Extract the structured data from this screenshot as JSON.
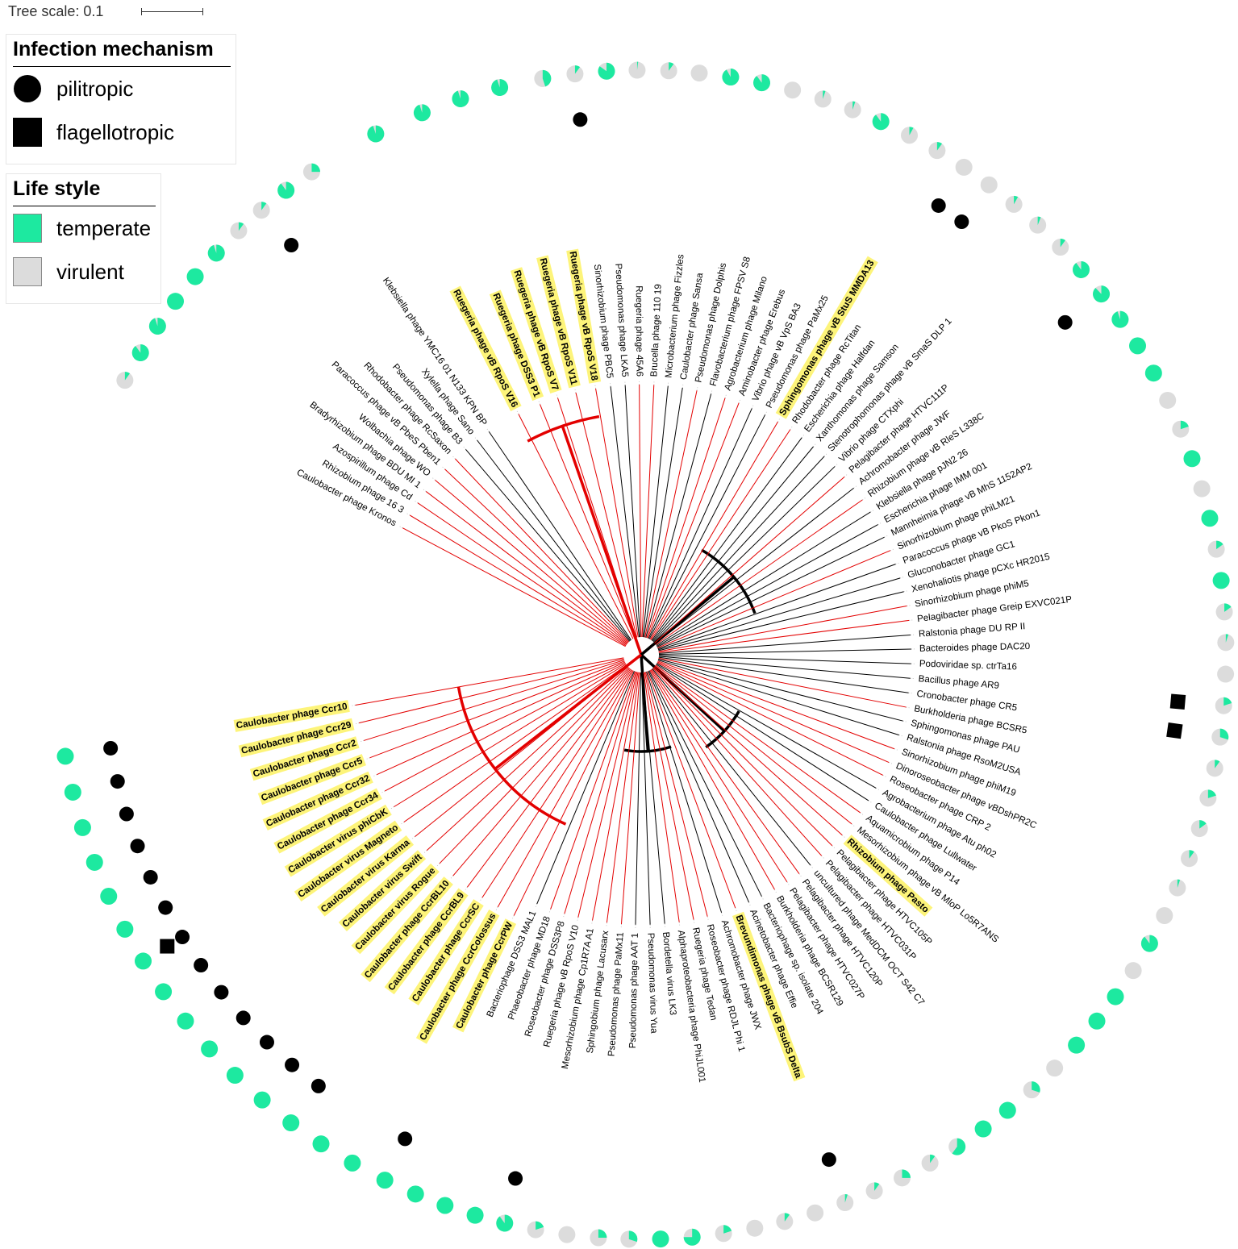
{
  "scale": {
    "label": "Tree scale: 0.1",
    "value": 0.1
  },
  "legend_infection": {
    "title": "Infection mechanism",
    "items": [
      {
        "label": "pilitropic",
        "shape": "circle",
        "color": "#000000"
      },
      {
        "label": "flagellotropic",
        "shape": "square",
        "color": "#000000"
      }
    ]
  },
  "legend_life": {
    "title": "Life style",
    "items": [
      {
        "label": "temperate",
        "color": "#1de9a0"
      },
      {
        "label": "virulent",
        "color": "#dcdcdc"
      }
    ]
  },
  "colors": {
    "temperate": "#1de9a0",
    "virulent": "#dcdcdc",
    "highlight": "#fdf47a",
    "caulo_branch": "#e30000",
    "branch": "#000000"
  },
  "tips": [
    {
      "name": "Ruegeria phage vB RpoS V18",
      "hl": true,
      "ang": -99.7,
      "t": 0.45,
      "mech": null,
      "red": true
    },
    {
      "name": "Sinorhizobium phage PBC5",
      "hl": false,
      "ang": -96.5,
      "t": 0.1,
      "mech": "pili",
      "red": false
    },
    {
      "name": "Pseudomonas phage LKA5",
      "hl": false,
      "ang": -93.4,
      "t": 0.85,
      "mech": null,
      "red": false
    },
    {
      "name": "Ruegeria phage 45A6",
      "hl": false,
      "ang": -90.4,
      "t": 0.02,
      "mech": null,
      "red": true
    },
    {
      "name": "Brucella phage 110 19",
      "hl": false,
      "ang": -87.3,
      "t": 0.1,
      "mech": null,
      "red": true
    },
    {
      "name": "Microbacterium phage Fizzles",
      "hl": false,
      "ang": -84.3,
      "t": 0.0,
      "mech": null,
      "red": false
    },
    {
      "name": "Caulobacter phage Sansa",
      "hl": false,
      "ang": -81.2,
      "t": 0.92,
      "mech": null,
      "red": false
    },
    {
      "name": "Pseudomonas phage Dolphis",
      "hl": false,
      "ang": -78.1,
      "t": 0.9,
      "mech": null,
      "red": true
    },
    {
      "name": "Flavobacterium phage FPSV S8",
      "hl": false,
      "ang": -75.0,
      "t": 0.0,
      "mech": null,
      "red": false
    },
    {
      "name": "Agrobacterium phage Milano",
      "hl": false,
      "ang": -71.9,
      "t": 0.05,
      "mech": null,
      "red": true
    },
    {
      "name": "Aminobacter phage Erebus",
      "hl": false,
      "ang": -68.8,
      "t": 0.05,
      "mech": null,
      "red": true
    },
    {
      "name": "Vibrio phage vB VpS BA3",
      "hl": false,
      "ang": -65.8,
      "t": 0.9,
      "mech": null,
      "red": false
    },
    {
      "name": "Pseudomonas phage PaMx25",
      "hl": false,
      "ang": -62.7,
      "t": 0.08,
      "mech": null,
      "red": false
    },
    {
      "name": "Sphingomonas phage vB StuS MMDA13",
      "hl": true,
      "ang": -59.6,
      "t": 0.1,
      "mech": null,
      "red": true
    },
    {
      "name": "Rhodobacter phage RcTitan",
      "hl": false,
      "ang": -56.5,
      "t": 0.0,
      "mech": "pili",
      "red": true
    },
    {
      "name": "Escherichia phage Halfdan",
      "hl": false,
      "ang": -53.5,
      "t": 0.0,
      "mech": "pili",
      "red": false
    },
    {
      "name": "Xanthomonas phage Samson",
      "hl": false,
      "ang": -50.4,
      "t": 0.08,
      "mech": null,
      "red": false
    },
    {
      "name": "Stenotrophomonas phage vB SmaS DLP 1",
      "hl": false,
      "ang": -47.3,
      "t": 0.06,
      "mech": null,
      "red": false
    },
    {
      "name": "Vibrio phage CTXphi",
      "hl": false,
      "ang": -44.2,
      "t": 0.1,
      "mech": null,
      "red": false
    },
    {
      "name": "Pelagibacter phage HTVC111P",
      "hl": false,
      "ang": -41.2,
      "t": 0.9,
      "mech": null,
      "red": true
    },
    {
      "name": "Achromobacter phage JWF",
      "hl": false,
      "ang": -38.1,
      "t": 0.88,
      "mech": "pili",
      "red": false
    },
    {
      "name": "Rhizobium phage vB RleS L338C",
      "hl": false,
      "ang": -35.0,
      "t": 0.95,
      "mech": null,
      "red": true
    },
    {
      "name": "Klebsiella phage pJN2 26",
      "hl": false,
      "ang": -31.9,
      "t": 1.0,
      "mech": null,
      "red": false
    },
    {
      "name": "Escherichia phage IMM 001",
      "hl": false,
      "ang": -28.8,
      "t": 1.0,
      "mech": null,
      "red": false
    },
    {
      "name": "Mannheimia phage vB MhS 1152AP2",
      "hl": false,
      "ang": -25.8,
      "t": 0.0,
      "mech": null,
      "red": false
    },
    {
      "name": "Sinorhizobium phage phiLM21",
      "hl": false,
      "ang": -22.7,
      "t": 0.2,
      "mech": null,
      "red": true
    },
    {
      "name": "Paracoccus phage vB PkoS Pkon1",
      "hl": false,
      "ang": -19.6,
      "t": 1.0,
      "mech": null,
      "red": false
    },
    {
      "name": "Gluconobacter phage GC1",
      "hl": false,
      "ang": -16.5,
      "t": 0.0,
      "mech": null,
      "red": false
    },
    {
      "name": "Xenohaliotis phage pCXc HR2015",
      "hl": false,
      "ang": -13.5,
      "t": 1.0,
      "mech": null,
      "red": false
    },
    {
      "name": "Sinorhizobium phage phiM5",
      "hl": false,
      "ang": -10.4,
      "t": 0.15,
      "mech": null,
      "red": true
    },
    {
      "name": "Pelagibacter phage Greip EXVC021P",
      "hl": false,
      "ang": -7.3,
      "t": 1.0,
      "mech": null,
      "red": true
    },
    {
      "name": "Ralstonia phage DU RP II",
      "hl": false,
      "ang": -4.2,
      "t": 0.15,
      "mech": null,
      "red": false
    },
    {
      "name": "Bacteroides phage DAC20",
      "hl": false,
      "ang": -1.2,
      "t": 0.05,
      "mech": null,
      "red": false
    },
    {
      "name": "Podoviridae sp. ctrTa16",
      "hl": false,
      "ang": 1.9,
      "t": 0.0,
      "mech": null,
      "red": false
    },
    {
      "name": "Bacillus phage AR9",
      "hl": false,
      "ang": 5.0,
      "t": 0.2,
      "mech": "flag",
      "red": false
    },
    {
      "name": "Cronobacter phage CR5",
      "hl": false,
      "ang": 8.1,
      "t": 0.3,
      "mech": "flag",
      "red": false
    },
    {
      "name": "Burkholderia phage BCSR5",
      "hl": false,
      "ang": 11.2,
      "t": 0.1,
      "mech": null,
      "red": true
    },
    {
      "name": "Sphingomonas phage PAU",
      "hl": false,
      "ang": 14.2,
      "t": 0.2,
      "mech": null,
      "red": false
    },
    {
      "name": "Ralstonia phage RsoM2USA",
      "hl": false,
      "ang": 17.3,
      "t": 0.15,
      "mech": null,
      "red": false
    },
    {
      "name": "Sinorhizobium phage phiM19",
      "hl": false,
      "ang": 20.4,
      "t": 0.1,
      "mech": null,
      "red": true
    },
    {
      "name": "Dinoroseobacter phage vBDshPR2C",
      "hl": false,
      "ang": 23.5,
      "t": 0.05,
      "mech": null,
      "red": true
    },
    {
      "name": "Roseobacter phage CRP 2",
      "hl": false,
      "ang": 26.5,
      "t": 0.0,
      "mech": null,
      "red": true
    },
    {
      "name": "Agrobacterium phage Atu ph02",
      "hl": false,
      "ang": 29.6,
      "t": 0.9,
      "mech": null,
      "red": false
    },
    {
      "name": "Caulobacter phage Lullwater",
      "hl": false,
      "ang": 32.7,
      "t": 0.0,
      "mech": null,
      "red": false
    },
    {
      "name": "Aquamicrobium phage P14",
      "hl": false,
      "ang": 35.8,
      "t": 1.0,
      "mech": null,
      "red": true
    },
    {
      "name": "Mesorhizobium phage vB MloP Lo5R7ANS",
      "hl": false,
      "ang": 38.8,
      "t": 1.0,
      "mech": null,
      "red": true
    },
    {
      "name": "Rhizobium phage Pasto",
      "hl": true,
      "ang": 41.9,
      "t": 1.0,
      "mech": null,
      "red": true
    },
    {
      "name": "Pelagibacter phage HTVC105P",
      "hl": false,
      "ang": 45.0,
      "t": 0.0,
      "mech": null,
      "red": true
    },
    {
      "name": "Pelagibacter phage HTVC031P",
      "hl": false,
      "ang": 48.1,
      "t": 0.3,
      "mech": null,
      "red": true
    },
    {
      "name": "uncultured phage MedDCM OCT S42 C7",
      "hl": false,
      "ang": 51.2,
      "t": 1.0,
      "mech": null,
      "red": false
    },
    {
      "name": "Pelagibacter phage HTVC120P",
      "hl": false,
      "ang": 54.2,
      "t": 1.0,
      "mech": null,
      "red": true
    },
    {
      "name": "Pelagibacter phage HTVC027P",
      "hl": false,
      "ang": 57.3,
      "t": 0.6,
      "mech": null,
      "red": true
    },
    {
      "name": "Burkholderia phage BCSR129",
      "hl": false,
      "ang": 60.4,
      "t": 0.1,
      "mech": null,
      "red": true
    },
    {
      "name": "Bacteriophage sp. isolate 204",
      "hl": false,
      "ang": 63.5,
      "t": 0.25,
      "mech": null,
      "red": false
    },
    {
      "name": "Acinetobacter phage Effie",
      "hl": false,
      "ang": 66.5,
      "t": 0.1,
      "mech": null,
      "red": false
    },
    {
      "name": "Brevundimonas phage vB BsubS Delta",
      "hl": true,
      "ang": 69.6,
      "t": 0.05,
      "mech": "pili",
      "red": true
    },
    {
      "name": "Achromobacter phage JWX",
      "hl": false,
      "ang": 72.7,
      "t": 0.0,
      "mech": null,
      "red": false
    },
    {
      "name": "Roseobacter phage RDJL Phi 1",
      "hl": false,
      "ang": 75.8,
      "t": 0.1,
      "mech": null,
      "red": true
    },
    {
      "name": "Ruegeria phage Tedan",
      "hl": false,
      "ang": 78.8,
      "t": 0.0,
      "mech": null,
      "red": true
    },
    {
      "name": "Alphaproteobacteria phage PhiJL001",
      "hl": false,
      "ang": 81.9,
      "t": 0.2,
      "mech": null,
      "red": true
    },
    {
      "name": "Bordetella virus LK3",
      "hl": false,
      "ang": 85.0,
      "t": 0.75,
      "mech": null,
      "red": false
    },
    {
      "name": "Pseudomonas virus Yua",
      "hl": false,
      "ang": 88.1,
      "t": 1.0,
      "mech": null,
      "red": false
    },
    {
      "name": "Pseudomonas phage AAT 1",
      "hl": false,
      "ang": 91.2,
      "t": 0.3,
      "mech": null,
      "red": false
    },
    {
      "name": "Pseudomonas phage PaMx11",
      "hl": false,
      "ang": 94.2,
      "t": 0.25,
      "mech": null,
      "red": true
    },
    {
      "name": "Sphingobium phage Lacusarx",
      "hl": false,
      "ang": 97.3,
      "t": 0.0,
      "mech": null,
      "red": true
    },
    {
      "name": "Mesorhizobium phage Cp1R7A A1",
      "hl": false,
      "ang": 100.4,
      "t": 0.2,
      "mech": null,
      "red": true
    },
    {
      "name": "Ruegeria phage vB RpoS V10",
      "hl": false,
      "ang": 103.5,
      "t": 0.9,
      "mech": "pili",
      "red": true
    },
    {
      "name": "Roseobacter phage DSS3P8",
      "hl": false,
      "ang": 106.5,
      "t": 1.0,
      "mech": null,
      "red": true
    },
    {
      "name": "Phaeobacter phage MD18",
      "hl": false,
      "ang": 109.6,
      "t": 1.0,
      "mech": null,
      "red": true
    },
    {
      "name": "Bacteriophage DSS3 MAL1",
      "hl": false,
      "ang": 112.7,
      "t": 1.0,
      "mech": null,
      "red": false
    },
    {
      "name": "Caulobacter phage CcrPW",
      "hl": true,
      "ang": 116.0,
      "t": 1.0,
      "mech": "pili",
      "red": true
    },
    {
      "name": "Caulobacter phage CcrColossus",
      "hl": true,
      "ang": 119.6,
      "t": 1.0,
      "mech": null,
      "red": true
    },
    {
      "name": "Caulobacter phage CcrSC",
      "hl": true,
      "ang": 123.2,
      "t": 1.0,
      "mech": null,
      "red": true
    },
    {
      "name": "Caulobacter phage CcrBL9",
      "hl": true,
      "ang": 126.8,
      "t": 1.0,
      "mech": "pili",
      "red": true
    },
    {
      "name": "Caulobacter phage CcrBL10",
      "hl": true,
      "ang": 130.4,
      "t": 1.0,
      "mech": "pili",
      "red": true
    },
    {
      "name": "Caulobacter virus Rogue",
      "hl": true,
      "ang": 134.0,
      "t": 1.0,
      "mech": "pili",
      "red": true
    },
    {
      "name": "Caulobacter virus Swift",
      "hl": true,
      "ang": 137.6,
      "t": 1.0,
      "mech": "pili",
      "red": true
    },
    {
      "name": "Caulobacter virus Karma",
      "hl": true,
      "ang": 141.2,
      "t": 1.0,
      "mech": "pili",
      "red": true
    },
    {
      "name": "Caulobacter virus Magneto",
      "hl": true,
      "ang": 144.8,
      "t": 1.0,
      "mech": "pili",
      "red": true
    },
    {
      "name": "Caulobacter virus phiCbK",
      "hl": true,
      "ang": 148.4,
      "t": 1.0,
      "mech": "both",
      "red": true
    },
    {
      "name": "Caulobacter phage Ccr34",
      "hl": true,
      "ang": 152.0,
      "t": 1.0,
      "mech": "pili",
      "red": true
    },
    {
      "name": "Caulobacter phage Ccr32",
      "hl": true,
      "ang": 155.6,
      "t": 1.0,
      "mech": "pili",
      "red": true
    },
    {
      "name": "Caulobacter phage Ccr5",
      "hl": true,
      "ang": 159.2,
      "t": 1.0,
      "mech": "pili",
      "red": true
    },
    {
      "name": "Caulobacter phage Ccr2",
      "hl": true,
      "ang": 162.8,
      "t": 1.0,
      "mech": "pili",
      "red": true
    },
    {
      "name": "Caulobacter phage Ccr29",
      "hl": true,
      "ang": 166.4,
      "t": 1.0,
      "mech": "pili",
      "red": true
    },
    {
      "name": "Caulobacter phage Ccr10",
      "hl": true,
      "ang": 170.0,
      "t": 1.0,
      "mech": "pili",
      "red": true
    },
    {
      "name": "Caulobacter phage Kronos",
      "hl": false,
      "ang": -152.0,
      "t": 0.1,
      "mech": null,
      "red": true
    },
    {
      "name": "Rhizobium phage 16 3",
      "hl": false,
      "ang": -148.9,
      "t": 0.9,
      "mech": null,
      "red": true
    },
    {
      "name": "Azospirillum phage Cd",
      "hl": false,
      "ang": -145.8,
      "t": 0.95,
      "mech": null,
      "red": true
    },
    {
      "name": "Bradyrhizobium phage BDU MI 1",
      "hl": false,
      "ang": -142.8,
      "t": 1.0,
      "mech": null,
      "red": true
    },
    {
      "name": "Wolbachia phage WO",
      "hl": false,
      "ang": -139.7,
      "t": 1.0,
      "mech": null,
      "red": true
    },
    {
      "name": "Paracoccus phage vB PbeS Pben1",
      "hl": false,
      "ang": -136.6,
      "t": 0.95,
      "mech": null,
      "red": true
    },
    {
      "name": "Rhodobacter phage RcSaxon",
      "hl": false,
      "ang": -133.5,
      "t": 0.1,
      "mech": null,
      "red": true
    },
    {
      "name": "Pseudomonas phage B3",
      "hl": false,
      "ang": -130.5,
      "t": 0.1,
      "mech": "pili",
      "red": false
    },
    {
      "name": "Xylella phage Sano",
      "hl": false,
      "ang": -127.4,
      "t": 0.9,
      "mech": null,
      "red": false
    },
    {
      "name": "Klebsiella phage YMC16 01 N133 KPN BP",
      "hl": false,
      "ang": -124.3,
      "t": 0.25,
      "mech": null,
      "red": false
    },
    {
      "name": "Ruegeria phage vB RpoS V16",
      "hl": true,
      "ang": -117.0,
      "t": 0.95,
      "mech": null,
      "red": true
    },
    {
      "name": "Ruegeria phage DSS3 P1",
      "hl": true,
      "ang": -112.0,
      "t": 0.95,
      "mech": null,
      "red": true
    },
    {
      "name": "Ruegeria phage vB RpoS V7",
      "hl": true,
      "ang": -108.0,
      "t": 0.95,
      "mech": null,
      "red": true
    },
    {
      "name": "Ruegeria phage vB RpoS V11",
      "hl": true,
      "ang": -104.0,
      "t": 0.95,
      "mech": null,
      "red": true
    }
  ]
}
